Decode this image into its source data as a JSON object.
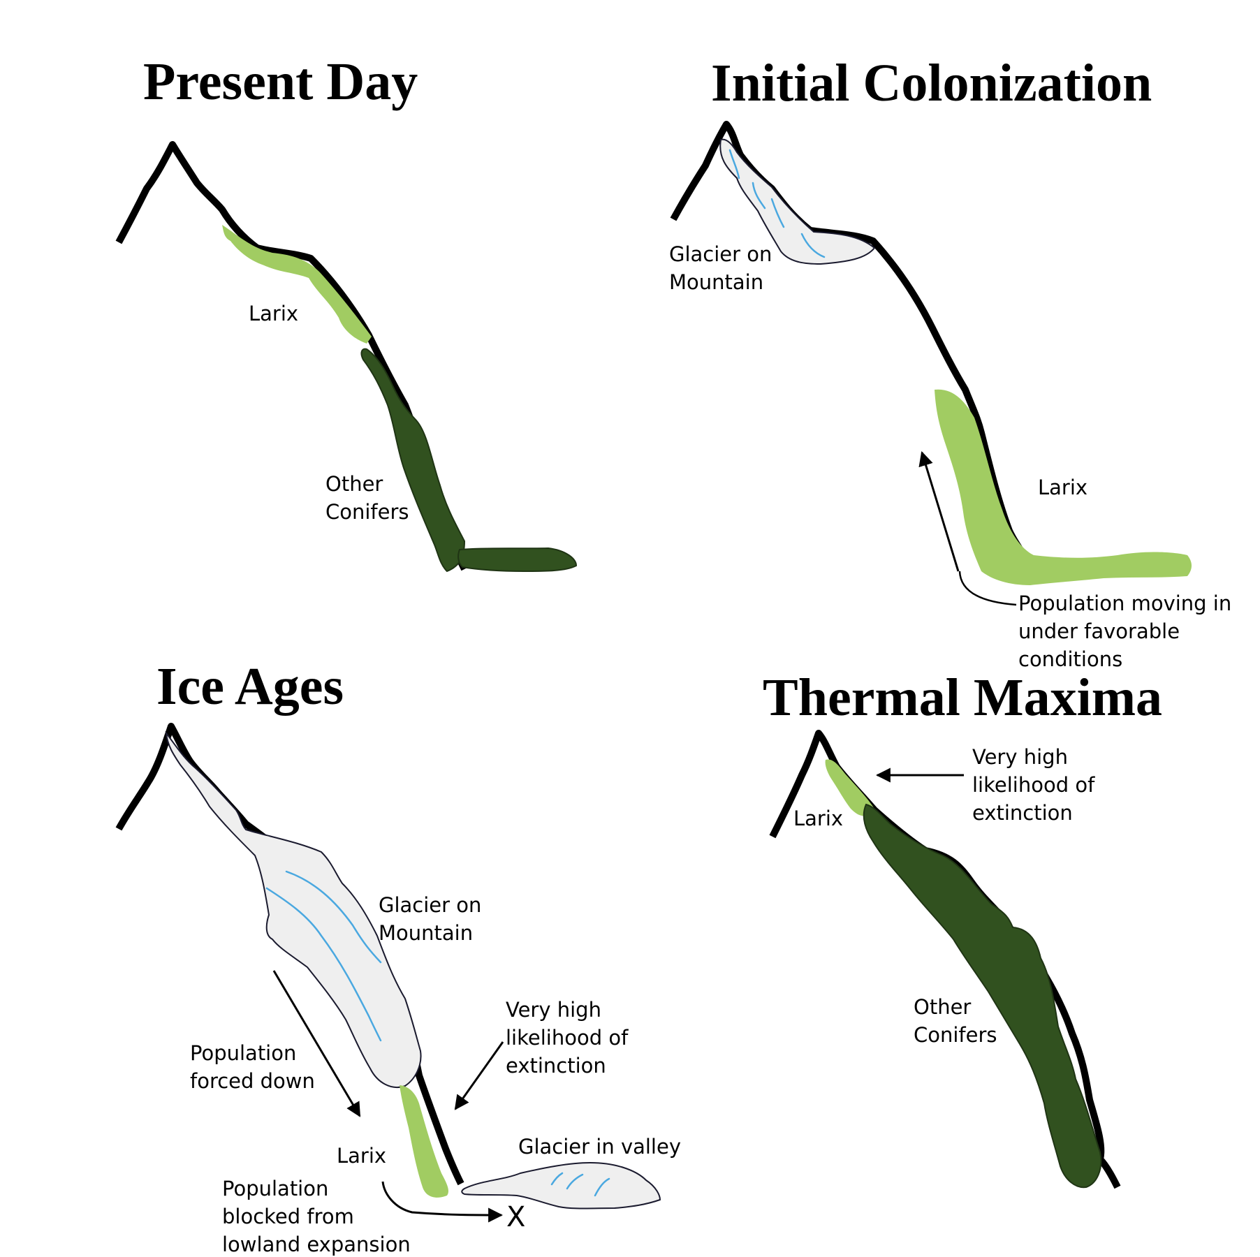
{
  "colors": {
    "larix": "#a1cc62",
    "other_conifers": "#31511f",
    "glacier": "#efefef",
    "crevasse": "#4aa8e0",
    "mountain": "#000000"
  },
  "panels": {
    "present_day": {
      "title": "Present Day",
      "larix_label": "Larix",
      "conifers_label": [
        "Other",
        "Conifers"
      ]
    },
    "initial_colonization": {
      "title": "Initial Colonization",
      "glacier_label": [
        "Glacier on",
        "Mountain"
      ],
      "larix_label": "Larix",
      "population_label": [
        "Population moving in",
        "under favorable",
        "conditions"
      ]
    },
    "ice_ages": {
      "title": "Ice Ages",
      "glacier_mountain_label": [
        "Glacier on",
        "Mountain"
      ],
      "forced_down_label": [
        "Population",
        "forced down"
      ],
      "extinction_label": [
        "Very high",
        "likelihood of",
        "extinction"
      ],
      "larix_label": "Larix",
      "glacier_valley_label": "Glacier in valley",
      "blocked_label": [
        "Population",
        "blocked from",
        "lowland expansion"
      ],
      "blocked_marker": "X"
    },
    "thermal_maxima": {
      "title": "Thermal Maxima",
      "extinction_label": [
        "Very high",
        "likelihood of",
        "extinction"
      ],
      "larix_label": "Larix",
      "conifers_label": [
        "Other",
        "Conifers"
      ]
    }
  }
}
